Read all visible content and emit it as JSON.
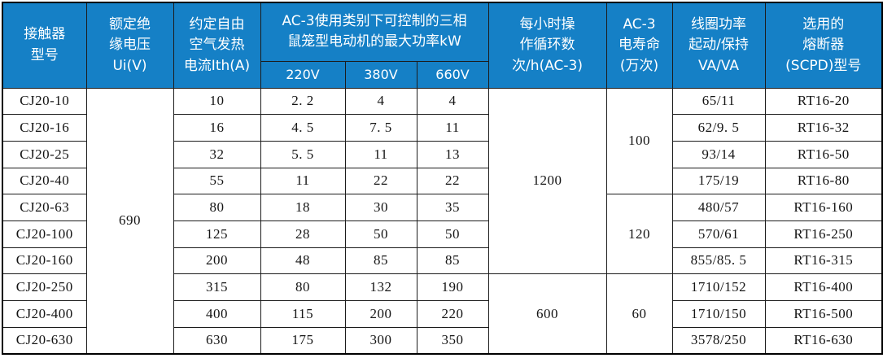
{
  "colors": {
    "header_bg": "#1580c6",
    "header_text": "#ffffff",
    "border": "#1c1c1c",
    "outer_border": "#000000",
    "body_text": "#141414"
  },
  "table": {
    "header": {
      "model": "接触器\n型号",
      "ui": "额定绝\n缘电压\nUi(V)",
      "ith": "约定自由\n空气发热\n电流Ith(A)",
      "power_group": "AC-3使用类别下可控制的三相\n鼠笼型电动机的最大功率kW",
      "v220": "220V",
      "v380": "380V",
      "v660": "660V",
      "cycles": "每小时操\n作循环数\n次/h(AC-3)",
      "life": "AC-3\n电寿命\n(万次)",
      "coil": "线圈功率\n起动/保持\nVA/VA",
      "fuse": "选用的\n熔断器\n(SCPD)型号"
    },
    "merged": {
      "ui": "690",
      "cycles": [
        "1200",
        "600"
      ],
      "life": [
        "100",
        "120",
        "60"
      ]
    },
    "rows": [
      {
        "model": "CJ20-10",
        "ith": "10",
        "p220": "2. 2",
        "p380": "4",
        "p660": "4",
        "coil": "65/11",
        "fuse": "RT16-20"
      },
      {
        "model": "CJ20-16",
        "ith": "16",
        "p220": "4. 5",
        "p380": "7. 5",
        "p660": "11",
        "coil": "62/9. 5",
        "fuse": "RT16-32"
      },
      {
        "model": "CJ20-25",
        "ith": "32",
        "p220": "5. 5",
        "p380": "11",
        "p660": "13",
        "coil": "93/14",
        "fuse": "RT16-50"
      },
      {
        "model": "CJ20-40",
        "ith": "55",
        "p220": "11",
        "p380": "22",
        "p660": "22",
        "coil": "175/19",
        "fuse": "RT16-80"
      },
      {
        "model": "CJ20-63",
        "ith": "80",
        "p220": "18",
        "p380": "30",
        "p660": "35",
        "coil": "480/57",
        "fuse": "RT16-160"
      },
      {
        "model": "CJ20-100",
        "ith": "125",
        "p220": "28",
        "p380": "50",
        "p660": "50",
        "coil": "570/61",
        "fuse": "RT16-250"
      },
      {
        "model": "CJ20-160",
        "ith": "200",
        "p220": "48",
        "p380": "85",
        "p660": "85",
        "coil": "855/85. 5",
        "fuse": "RT16-315"
      },
      {
        "model": "CJ20-250",
        "ith": "315",
        "p220": "80",
        "p380": "132",
        "p660": "190",
        "coil": "1710/152",
        "fuse": "RT16-400"
      },
      {
        "model": "CJ20-400",
        "ith": "400",
        "p220": "115",
        "p380": "200",
        "p660": "220",
        "coil": "1710/150",
        "fuse": "RT16-500"
      },
      {
        "model": "CJ20-630",
        "ith": "630",
        "p220": "175",
        "p380": "300",
        "p660": "350",
        "coil": "3578/250",
        "fuse": "RT16-630"
      }
    ]
  }
}
